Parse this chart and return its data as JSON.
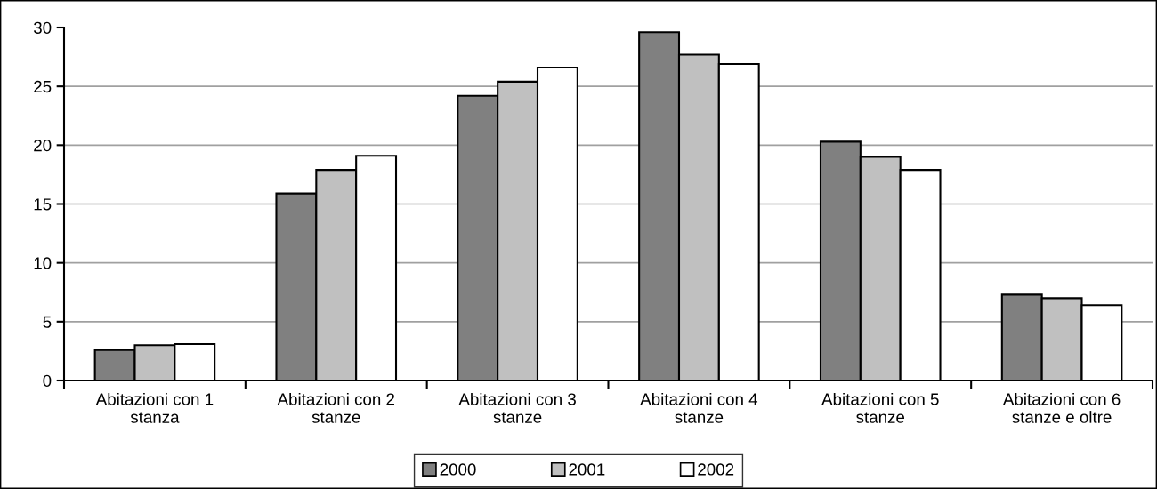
{
  "chart_data": {
    "type": "bar",
    "categories": [
      "Abitazioni con 1\nstanza",
      "Abitazioni con 2\nstanze",
      "Abitazioni con 3\nstanze",
      "Abitazioni con 4\nstanze",
      "Abitazioni con 5\nstanze",
      "Abitazioni con 6\nstanze e oltre"
    ],
    "series": [
      {
        "name": "2000",
        "color": "#808080",
        "values": [
          2.6,
          15.9,
          24.2,
          29.6,
          20.3,
          7.3
        ]
      },
      {
        "name": "2001",
        "color": "#c0c0c0",
        "values": [
          3.0,
          17.9,
          25.4,
          27.7,
          19.0,
          7.0
        ]
      },
      {
        "name": "2002",
        "color": "#ffffff",
        "values": [
          3.1,
          19.1,
          26.6,
          26.9,
          17.9,
          6.4
        ]
      }
    ],
    "ylim": [
      0,
      30
    ],
    "yticks": [
      0,
      5,
      10,
      15,
      20,
      25,
      30
    ],
    "grid": "y",
    "legend": "bottom"
  }
}
